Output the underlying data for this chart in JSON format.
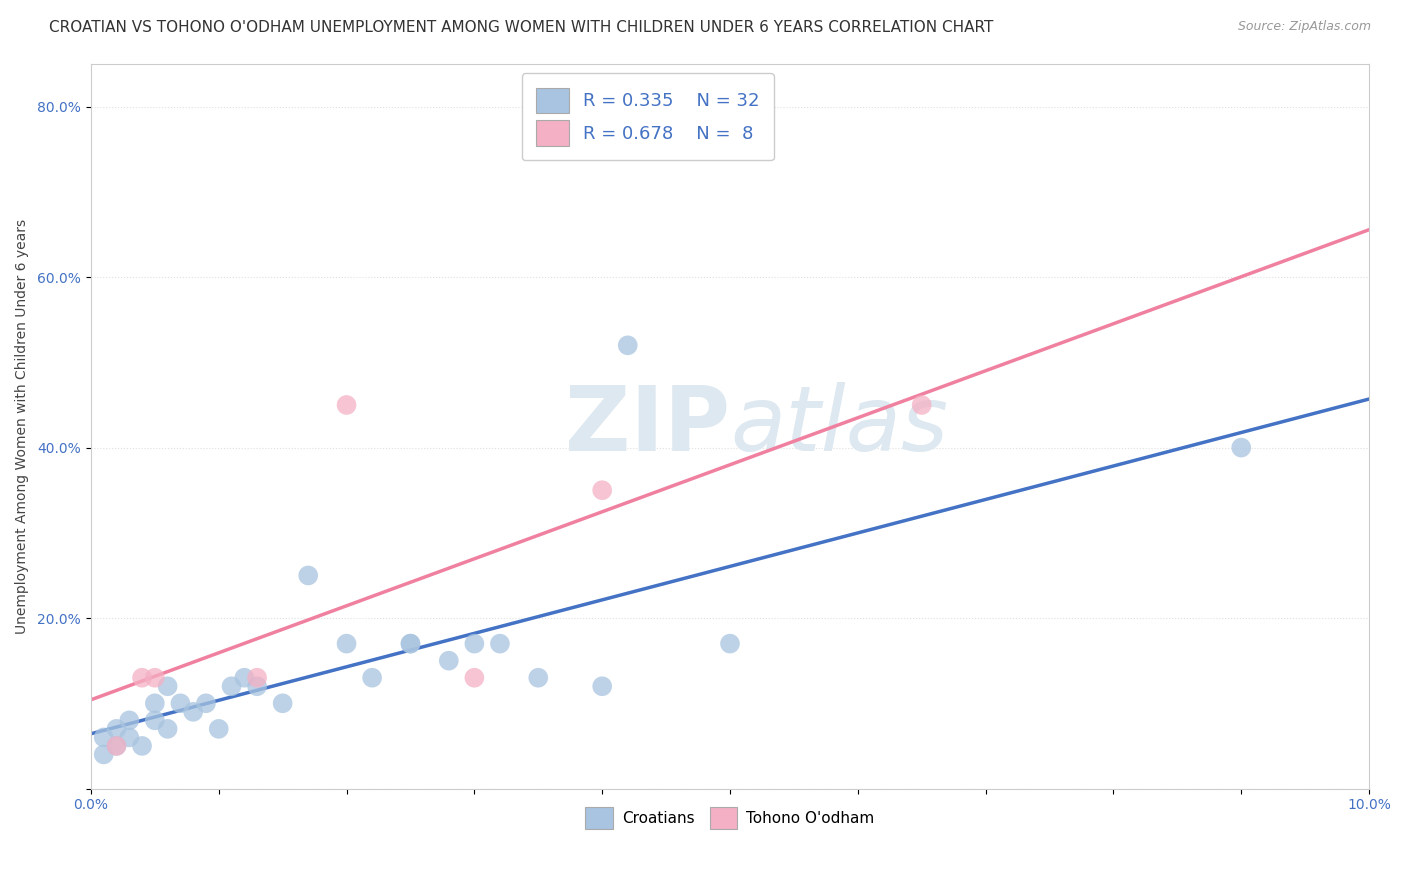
{
  "title": "CROATIAN VS TOHONO O'ODHAM UNEMPLOYMENT AMONG WOMEN WITH CHILDREN UNDER 6 YEARS CORRELATION CHART",
  "source": "Source: ZipAtlas.com",
  "ylabel": "Unemployment Among Women with Children Under 6 years",
  "xlim": [
    0.0,
    0.1
  ],
  "ylim": [
    0.0,
    0.85
  ],
  "x_ticks": [
    0.0,
    0.01,
    0.02,
    0.03,
    0.04,
    0.05,
    0.06,
    0.07,
    0.08,
    0.09,
    0.1
  ],
  "y_ticks": [
    0.0,
    0.2,
    0.4,
    0.6,
    0.8
  ],
  "croatian_R": "0.335",
  "croatian_N": "32",
  "tohono_R": "0.678",
  "tohono_N": "8",
  "croatian_color": "#a8c4e0",
  "tohono_color": "#f4b0c4",
  "trendline_color_croatian": "#4472c4",
  "trendline_color_tohono": "#f080a0",
  "watermark_color": "#e8eef4",
  "croatian_x": [
    0.001,
    0.001,
    0.002,
    0.002,
    0.003,
    0.003,
    0.004,
    0.005,
    0.005,
    0.006,
    0.006,
    0.007,
    0.008,
    0.009,
    0.01,
    0.011,
    0.012,
    0.013,
    0.015,
    0.017,
    0.02,
    0.022,
    0.025,
    0.025,
    0.028,
    0.03,
    0.032,
    0.035,
    0.04,
    0.042,
    0.05,
    0.09
  ],
  "croatian_y": [
    0.04,
    0.06,
    0.05,
    0.07,
    0.06,
    0.08,
    0.05,
    0.08,
    0.1,
    0.07,
    0.12,
    0.1,
    0.09,
    0.1,
    0.07,
    0.12,
    0.13,
    0.12,
    0.1,
    0.25,
    0.17,
    0.13,
    0.17,
    0.17,
    0.15,
    0.17,
    0.17,
    0.13,
    0.12,
    0.52,
    0.17,
    0.4
  ],
  "tohono_x": [
    0.002,
    0.004,
    0.005,
    0.013,
    0.02,
    0.03,
    0.04,
    0.065
  ],
  "tohono_y": [
    0.05,
    0.13,
    0.13,
    0.13,
    0.45,
    0.13,
    0.35,
    0.45
  ],
  "background_color": "#ffffff",
  "grid_color": "#e0e0e0",
  "title_fontsize": 11,
  "axis_label_fontsize": 10,
  "tick_fontsize": 10,
  "legend_fontsize": 13
}
